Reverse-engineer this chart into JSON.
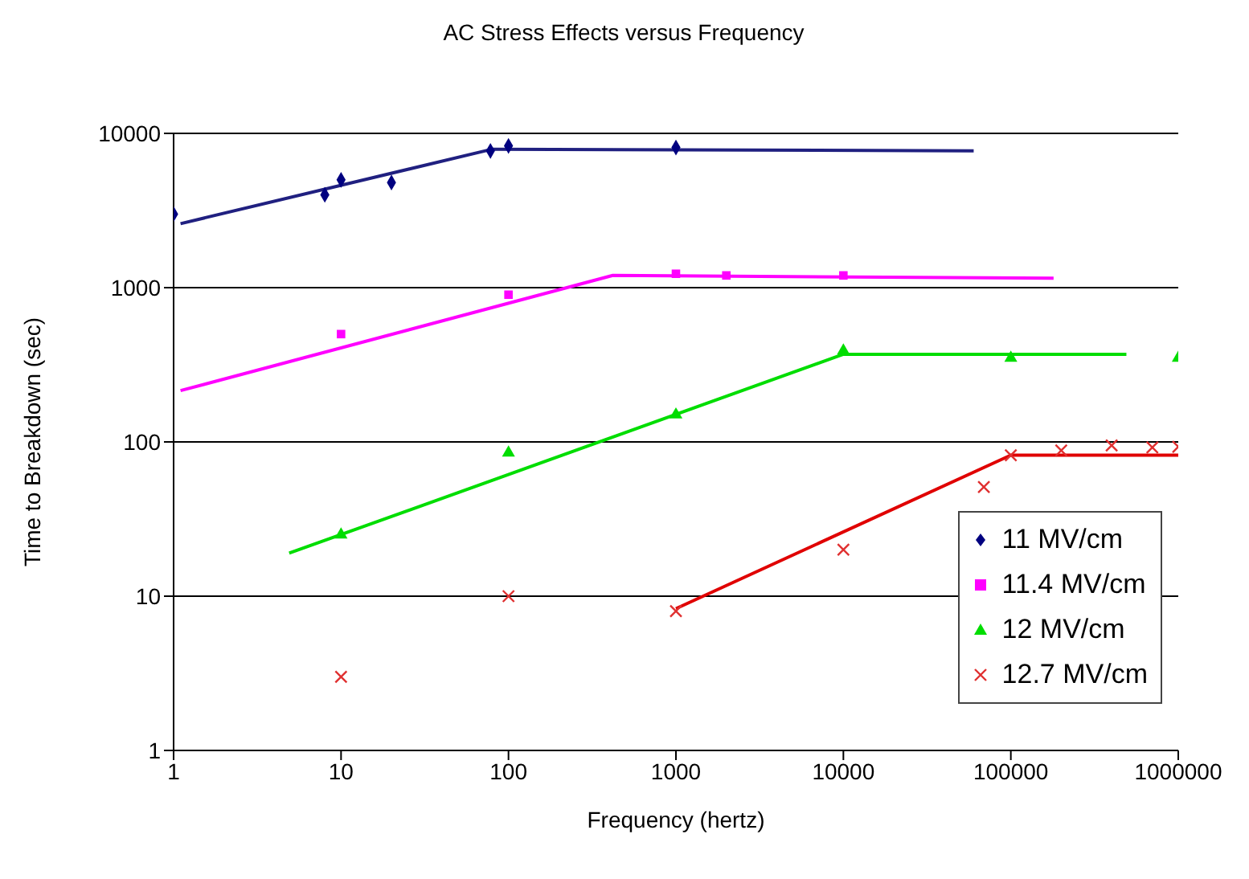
{
  "chart_data": {
    "type": "scatter",
    "title": "AC Stress Effects versus Frequency",
    "xlabel": "Frequency (hertz)",
    "ylabel": "Time to Breakdown (sec)",
    "log": "xy",
    "xlim": [
      1,
      1000000
    ],
    "xticks": [
      1,
      10,
      100,
      1000,
      10000,
      100000,
      1000000
    ],
    "ylim": [
      1,
      10000
    ],
    "yticks": [
      1,
      10,
      100,
      1000,
      10000
    ],
    "grid": "y",
    "legend": "bottom right",
    "series": [
      {
        "name": "11 MV/cm",
        "color": "#000080",
        "marker": "diamond",
        "x": [
          1,
          8,
          10,
          20,
          78,
          100,
          1000
        ],
        "values": [
          3000,
          4000,
          5000,
          4800,
          7700,
          8300,
          8100
        ]
      },
      {
        "name": "11.4 MV/cm",
        "color": "#ff00ff",
        "marker": "square",
        "x": [
          10,
          100,
          1000,
          2000,
          10000
        ],
        "values": [
          500,
          900,
          1230,
          1200,
          1200
        ]
      },
      {
        "name": "12 MV/cm",
        "color": "#00dd00",
        "marker": "triangle",
        "x": [
          10,
          100,
          1000,
          10000,
          100000,
          1000000
        ],
        "values": [
          25,
          85,
          150,
          390,
          350,
          350
        ]
      },
      {
        "name": "12.7 MV/cm",
        "color": "#e03030",
        "marker": "cross",
        "x": [
          10,
          100,
          1000,
          10000,
          69000,
          100000,
          200000,
          400000,
          700000,
          1000000
        ],
        "values": [
          3,
          10,
          8,
          20,
          51,
          82,
          88,
          95,
          92,
          93
        ]
      },
      {
        "type": "line",
        "color": "#202080",
        "x": [
          1.1,
          80,
          60000
        ],
        "values": [
          2600,
          7900,
          7700
        ]
      },
      {
        "type": "line",
        "color": "#ff00ff",
        "x": [
          1.1,
          420,
          180000
        ],
        "values": [
          215,
          1200,
          1150
        ]
      },
      {
        "type": "line",
        "color": "#00dd00",
        "x": [
          4.9,
          10000,
          490000
        ],
        "values": [
          19,
          370,
          370
        ]
      },
      {
        "type": "line",
        "color": "#e00000",
        "x": [
          1000,
          100000,
          1000000
        ],
        "values": [
          8.3,
          82,
          82
        ]
      }
    ]
  }
}
